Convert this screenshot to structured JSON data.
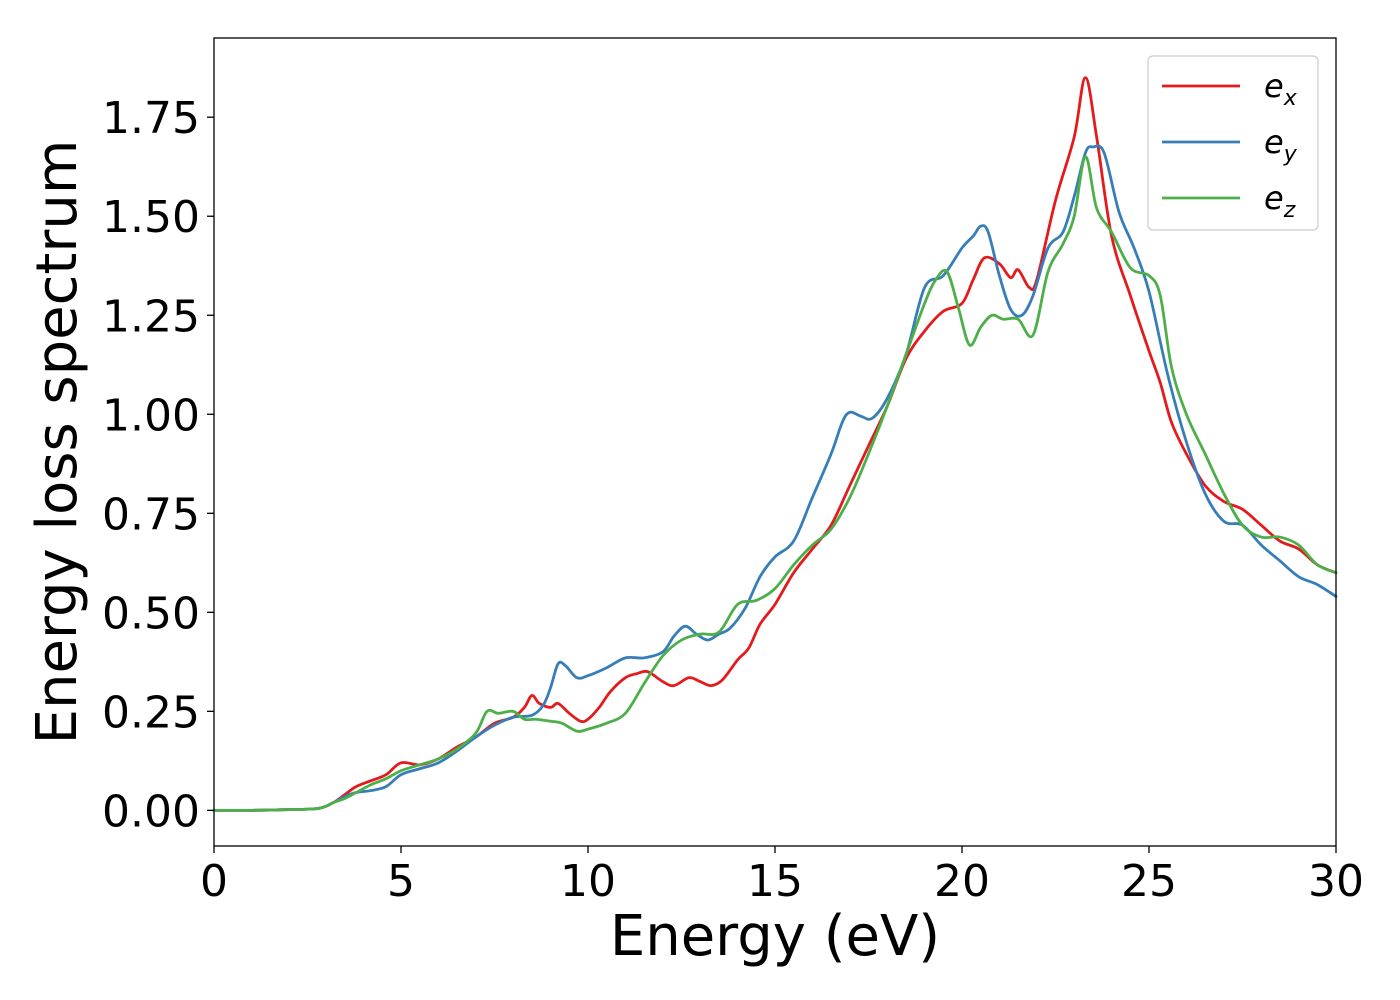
{
  "chart_data": {
    "type": "line",
    "title": "",
    "xlabel": "Energy (eV)",
    "ylabel": "Energy loss spectrum",
    "xlim": [
      0,
      30
    ],
    "ylim": [
      -0.09,
      1.95
    ],
    "xticks": [
      0,
      5,
      10,
      15,
      20,
      25,
      30
    ],
    "xtick_labels": [
      "0",
      "5",
      "10",
      "15",
      "20",
      "25",
      "30"
    ],
    "yticks": [
      0,
      0.25,
      0.5,
      0.75,
      1.0,
      1.25,
      1.5,
      1.75
    ],
    "ytick_labels": [
      "0.00",
      "0.25",
      "0.50",
      "0.75",
      "1.00",
      "1.25",
      "1.50",
      "1.75"
    ],
    "grid": false,
    "legend_position": "top-right",
    "series": [
      {
        "name": "e_x",
        "label_base": "e",
        "label_sub": "x",
        "color": "#e41a1c",
        "x": [
          0,
          1,
          2,
          2.8,
          3.2,
          3.5,
          3.8,
          4.2,
          4.6,
          5,
          5.5,
          6,
          6.5,
          7,
          7.5,
          8,
          8.3,
          8.5,
          8.7,
          9,
          9.2,
          9.5,
          9.8,
          10,
          10.3,
          10.6,
          11,
          11.3,
          11.6,
          12,
          12.3,
          12.7,
          13,
          13.3,
          13.6,
          14,
          14.3,
          14.6,
          15,
          15.5,
          16,
          16.5,
          17,
          17.5,
          18,
          18.5,
          19,
          19.5,
          20,
          20.3,
          20.6,
          21,
          21.3,
          21.5,
          21.8,
          22,
          22.5,
          23,
          23.3,
          23.6,
          24,
          24.5,
          25,
          25.3,
          25.6,
          26,
          26.5,
          27,
          27.5,
          28,
          28.5,
          29,
          29.5,
          30
        ],
        "y": [
          0,
          0,
          0.002,
          0.005,
          0.02,
          0.04,
          0.06,
          0.075,
          0.09,
          0.12,
          0.115,
          0.13,
          0.16,
          0.185,
          0.22,
          0.235,
          0.26,
          0.29,
          0.27,
          0.26,
          0.27,
          0.245,
          0.225,
          0.23,
          0.26,
          0.3,
          0.335,
          0.345,
          0.35,
          0.325,
          0.315,
          0.335,
          0.325,
          0.315,
          0.33,
          0.38,
          0.41,
          0.47,
          0.52,
          0.6,
          0.66,
          0.72,
          0.82,
          0.92,
          1.02,
          1.14,
          1.21,
          1.26,
          1.28,
          1.34,
          1.395,
          1.38,
          1.345,
          1.365,
          1.32,
          1.34,
          1.54,
          1.7,
          1.85,
          1.7,
          1.45,
          1.3,
          1.16,
          1.08,
          0.98,
          0.9,
          0.82,
          0.78,
          0.76,
          0.72,
          0.68,
          0.66,
          0.62,
          0.6
        ]
      },
      {
        "name": "e_y",
        "label_base": "e",
        "label_sub": "y",
        "color": "#377eb8",
        "x": [
          0,
          1,
          2,
          2.8,
          3.2,
          3.5,
          3.8,
          4.2,
          4.6,
          5,
          5.5,
          6,
          6.5,
          7,
          7.5,
          8,
          8.5,
          8.8,
          9,
          9.2,
          9.4,
          9.7,
          10,
          10.5,
          11,
          11.5,
          12,
          12.3,
          12.6,
          12.9,
          13.2,
          13.5,
          13.8,
          14.2,
          14.6,
          15,
          15.5,
          16,
          16.5,
          16.8,
          17,
          17.3,
          17.6,
          18,
          18.5,
          19,
          19.5,
          20,
          20.3,
          20.5,
          20.7,
          21,
          21.3,
          21.6,
          21.9,
          22.3,
          22.7,
          23,
          23.3,
          23.5,
          23.8,
          24.2,
          24.6,
          25,
          25.5,
          26,
          26.5,
          27,
          27.5,
          28,
          28.5,
          29,
          29.5,
          30
        ],
        "y": [
          0,
          0,
          0.002,
          0.005,
          0.02,
          0.035,
          0.045,
          0.05,
          0.06,
          0.09,
          0.105,
          0.12,
          0.15,
          0.185,
          0.215,
          0.235,
          0.24,
          0.265,
          0.31,
          0.37,
          0.365,
          0.335,
          0.34,
          0.36,
          0.385,
          0.385,
          0.4,
          0.44,
          0.465,
          0.445,
          0.43,
          0.445,
          0.46,
          0.51,
          0.59,
          0.64,
          0.68,
          0.79,
          0.9,
          0.98,
          1.005,
          0.995,
          0.99,
          1.04,
          1.15,
          1.32,
          1.35,
          1.42,
          1.45,
          1.475,
          1.46,
          1.35,
          1.265,
          1.25,
          1.3,
          1.42,
          1.46,
          1.55,
          1.66,
          1.675,
          1.66,
          1.51,
          1.42,
          1.31,
          1.1,
          0.93,
          0.8,
          0.73,
          0.72,
          0.67,
          0.63,
          0.59,
          0.57,
          0.54
        ]
      },
      {
        "name": "e_z",
        "label_base": "e",
        "label_sub": "z",
        "color": "#4daf4a",
        "x": [
          0,
          1,
          2,
          2.8,
          3.2,
          3.5,
          3.8,
          4.2,
          4.6,
          5,
          5.5,
          6,
          6.5,
          7,
          7.3,
          7.6,
          8,
          8.3,
          8.6,
          9,
          9.3,
          9.7,
          10,
          10.5,
          11,
          11.5,
          12,
          12.5,
          13,
          13.5,
          14,
          14.5,
          15,
          15.5,
          16,
          16.5,
          17,
          17.5,
          18,
          18.5,
          19,
          19.3,
          19.6,
          19.9,
          20.2,
          20.5,
          20.8,
          21.1,
          21.5,
          21.9,
          22.3,
          22.7,
          23,
          23.3,
          23.6,
          24,
          24.5,
          25,
          25.3,
          25.6,
          26,
          26.5,
          27,
          27.5,
          28,
          28.5,
          29,
          29.5,
          30
        ],
        "y": [
          0,
          0,
          0.002,
          0.005,
          0.02,
          0.03,
          0.045,
          0.065,
          0.08,
          0.1,
          0.115,
          0.13,
          0.155,
          0.195,
          0.25,
          0.245,
          0.25,
          0.23,
          0.23,
          0.225,
          0.22,
          0.2,
          0.205,
          0.22,
          0.245,
          0.32,
          0.39,
          0.43,
          0.445,
          0.45,
          0.52,
          0.53,
          0.56,
          0.62,
          0.67,
          0.71,
          0.79,
          0.9,
          1.02,
          1.15,
          1.28,
          1.34,
          1.36,
          1.27,
          1.175,
          1.22,
          1.25,
          1.24,
          1.24,
          1.2,
          1.36,
          1.43,
          1.5,
          1.65,
          1.52,
          1.46,
          1.37,
          1.35,
          1.3,
          1.12,
          1.0,
          0.9,
          0.8,
          0.72,
          0.69,
          0.69,
          0.67,
          0.62,
          0.6
        ]
      }
    ]
  }
}
